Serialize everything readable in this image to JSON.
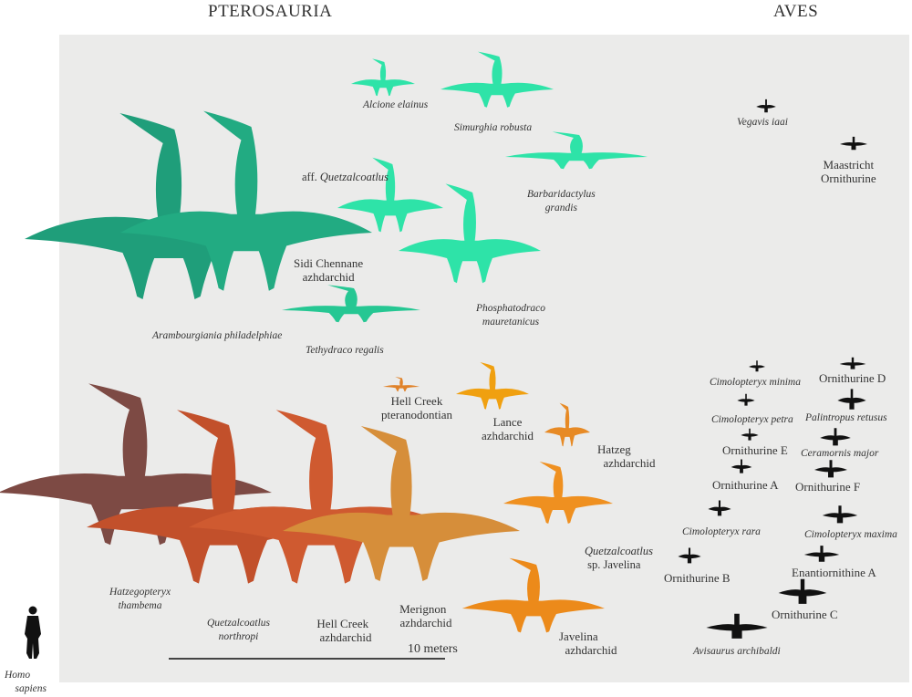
{
  "headers": {
    "pterosauria": "PTEROSAURIA",
    "aves": "AVES"
  },
  "colors": {
    "panel": "#ebebea",
    "teal_dark": "#1f9e7a",
    "teal_bright": "#2ee3a8",
    "brown": "#7d4a44",
    "rust": "#c2502b",
    "red_orange": "#cf5a30",
    "ochre": "#d68e3a",
    "orange": "#ec8a1a",
    "amber": "#f0a010",
    "bird": "#111111"
  },
  "pterosaurs_upper": {
    "alcione": "Alcione elainus",
    "simurghia": "Simurghia robusta",
    "aff_prefix": "aff.",
    "aff_genus": "Quetzalcoatlus",
    "barbaridactylus_1": "Barbaridactylus",
    "barbaridactylus_2": "grandis",
    "sidi_1": "Sidi Chennane",
    "sidi_2": "azhdarchid",
    "phosphatodraco_1": "Phosphatodraco",
    "phosphatodraco_2": "mauretanicus",
    "arambourgiania": "Arambourgiania philadelphiae",
    "tethydraco": "Tethydraco regalis"
  },
  "pterosaurs_lower": {
    "hcpter_1": "Hell Creek",
    "hcpter_2": "pteranodontian",
    "lance_1": "Lance",
    "lance_2": "azhdarchid",
    "hatzeg_1": "Hatzeg",
    "hatzeg_2": "azhdarchid",
    "qjav_genus": "Quetzalcoatlus",
    "qjav_rest": "sp. Javelina",
    "hatzegopteryx_1": "Hatzegopteryx",
    "hatzegopteryx_2": "thambema",
    "qnorth_1": "Quetzalcoatlus",
    "qnorth_2": "northropi",
    "hcazh_1": "Hell Creek",
    "hcazh_2": "azhdarchid",
    "merignon_1": "Merignon",
    "merignon_2": "azhdarchid",
    "javelina_1": "Javelina",
    "javelina_2": "azhdarchid"
  },
  "birds": {
    "vegavis": "Vegavis iaai",
    "maastricht_1": "Maastricht",
    "maastricht_2": "Ornithurine",
    "cim_minima": "Cimolopteryx minima",
    "orn_d": "Ornithurine D",
    "cim_petra": "Cimolopteryx petra",
    "palintropus": "Palintropus retusus",
    "orn_e": "Ornithurine E",
    "ceramornis": "Ceramornis major",
    "orn_a": "Ornithurine A",
    "orn_f": "Ornithurine F",
    "cim_rara": "Cimolopteryx rara",
    "cim_maxima": "Cimolopteryx maxima",
    "orn_b": "Ornithurine B",
    "enantiornithine_a": "Enantiornithine A",
    "orn_c": "Ornithurine C",
    "avisaurus": "Avisaurus archibaldi"
  },
  "human": {
    "line1": "Homo",
    "line2": "sapiens"
  },
  "scale_bar": {
    "label": "10 meters"
  }
}
